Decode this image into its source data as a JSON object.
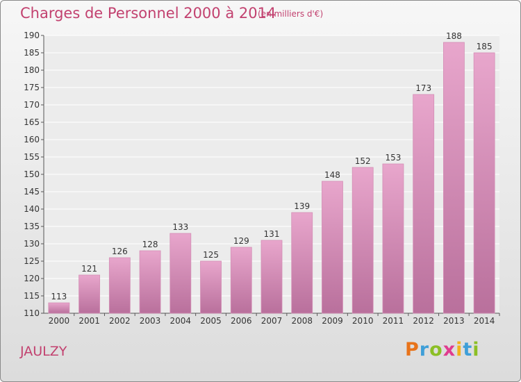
{
  "chart_data": {
    "type": "bar",
    "title": "Charges de Personnel 2000 à 2014",
    "subtitle": "(en milliers d'€)",
    "categories": [
      "2000",
      "2001",
      "2002",
      "2003",
      "2004",
      "2005",
      "2006",
      "2007",
      "2008",
      "2009",
      "2010",
      "2011",
      "2012",
      "2013",
      "2014"
    ],
    "values": [
      113,
      121,
      126,
      128,
      133,
      125,
      129,
      131,
      139,
      148,
      152,
      153,
      173,
      188,
      185
    ],
    "ylim": [
      110,
      190
    ],
    "ytick_step": 5,
    "grid": "horizontal",
    "xlabel": "",
    "ylabel": ""
  },
  "footer": {
    "city": "JAULZY",
    "logo_letters": [
      "P",
      "r",
      "o",
      "x",
      "i",
      "t",
      "i"
    ],
    "logo_colors": [
      "#e8731a",
      "#3f9fd8",
      "#8cbf26",
      "#e03c8f",
      "#f3b21b",
      "#3f9fd8",
      "#8cbf26"
    ]
  },
  "colors": {
    "bar_light": "#e8a6cc",
    "bar_dark": "#b9709c",
    "text_accent": "#c2416f"
  }
}
